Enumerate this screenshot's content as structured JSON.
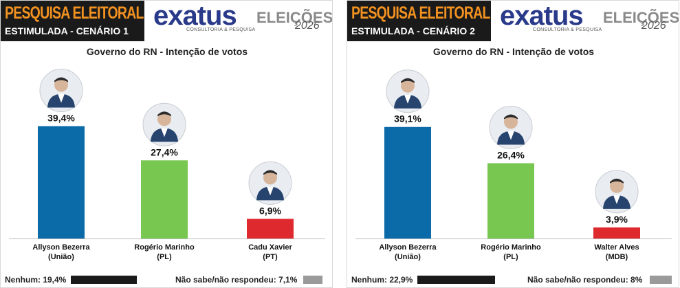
{
  "chart_data": [
    {
      "type": "bar",
      "header_title": "PESQUISA ELEITORAL",
      "header_subtitle": "ESTIMULADA - CENÁRIO 1",
      "logo": {
        "name": "exatus",
        "tagline": "CONSULTORIA & PESQUISA"
      },
      "elections_label": "ELEIÇÕES",
      "elections_year": "2026",
      "title": "Governo do RN - Intenção de votos",
      "categories": [
        "Allyson Bezerra",
        "Rogério Marinho",
        "Cadu Xavier"
      ],
      "parties": [
        "(União)",
        "(PL)",
        "(PT)"
      ],
      "values": [
        39.4,
        27.4,
        6.9
      ],
      "value_labels": [
        "39,4%",
        "27,4%",
        "6,9%"
      ],
      "colors": [
        "#0b6aa8",
        "#78c750",
        "#de2a2e"
      ],
      "ylim": [
        0,
        45
      ],
      "footer": {
        "none_label": "Nenhum: 19,4%",
        "none_value": 19.4,
        "none_color": "#1a1a1a",
        "dontknow_label": "Não sabe/não respondeu: 7,1%",
        "dontknow_value": 7.1,
        "dontknow_color": "#9a9a9a"
      }
    },
    {
      "type": "bar",
      "header_title": "PESQUISA ELEITORAL",
      "header_subtitle": "ESTIMULADA - CENÁRIO 2",
      "logo": {
        "name": "exatus",
        "tagline": "CONSULTORIA & PESQUISA"
      },
      "elections_label": "ELEIÇÕES",
      "elections_year": "2026",
      "title": "Governo do RN - Intenção de votos",
      "categories": [
        "Allyson Bezerra",
        "Rogério Marinho",
        "Walter Alves"
      ],
      "parties": [
        "(União)",
        "(PL)",
        "(MDB)"
      ],
      "values": [
        39.1,
        26.4,
        3.9
      ],
      "value_labels": [
        "39,1%",
        "26,4%",
        "3,9%"
      ],
      "colors": [
        "#0b6aa8",
        "#78c750",
        "#de2a2e"
      ],
      "ylim": [
        0,
        45
      ],
      "footer": {
        "none_label": "Nenhum: 22,9%",
        "none_value": 22.9,
        "none_color": "#1a1a1a",
        "dontknow_label": "Não sabe/não respondeu: 8%",
        "dontknow_value": 8,
        "dontknow_color": "#9a9a9a"
      }
    }
  ]
}
